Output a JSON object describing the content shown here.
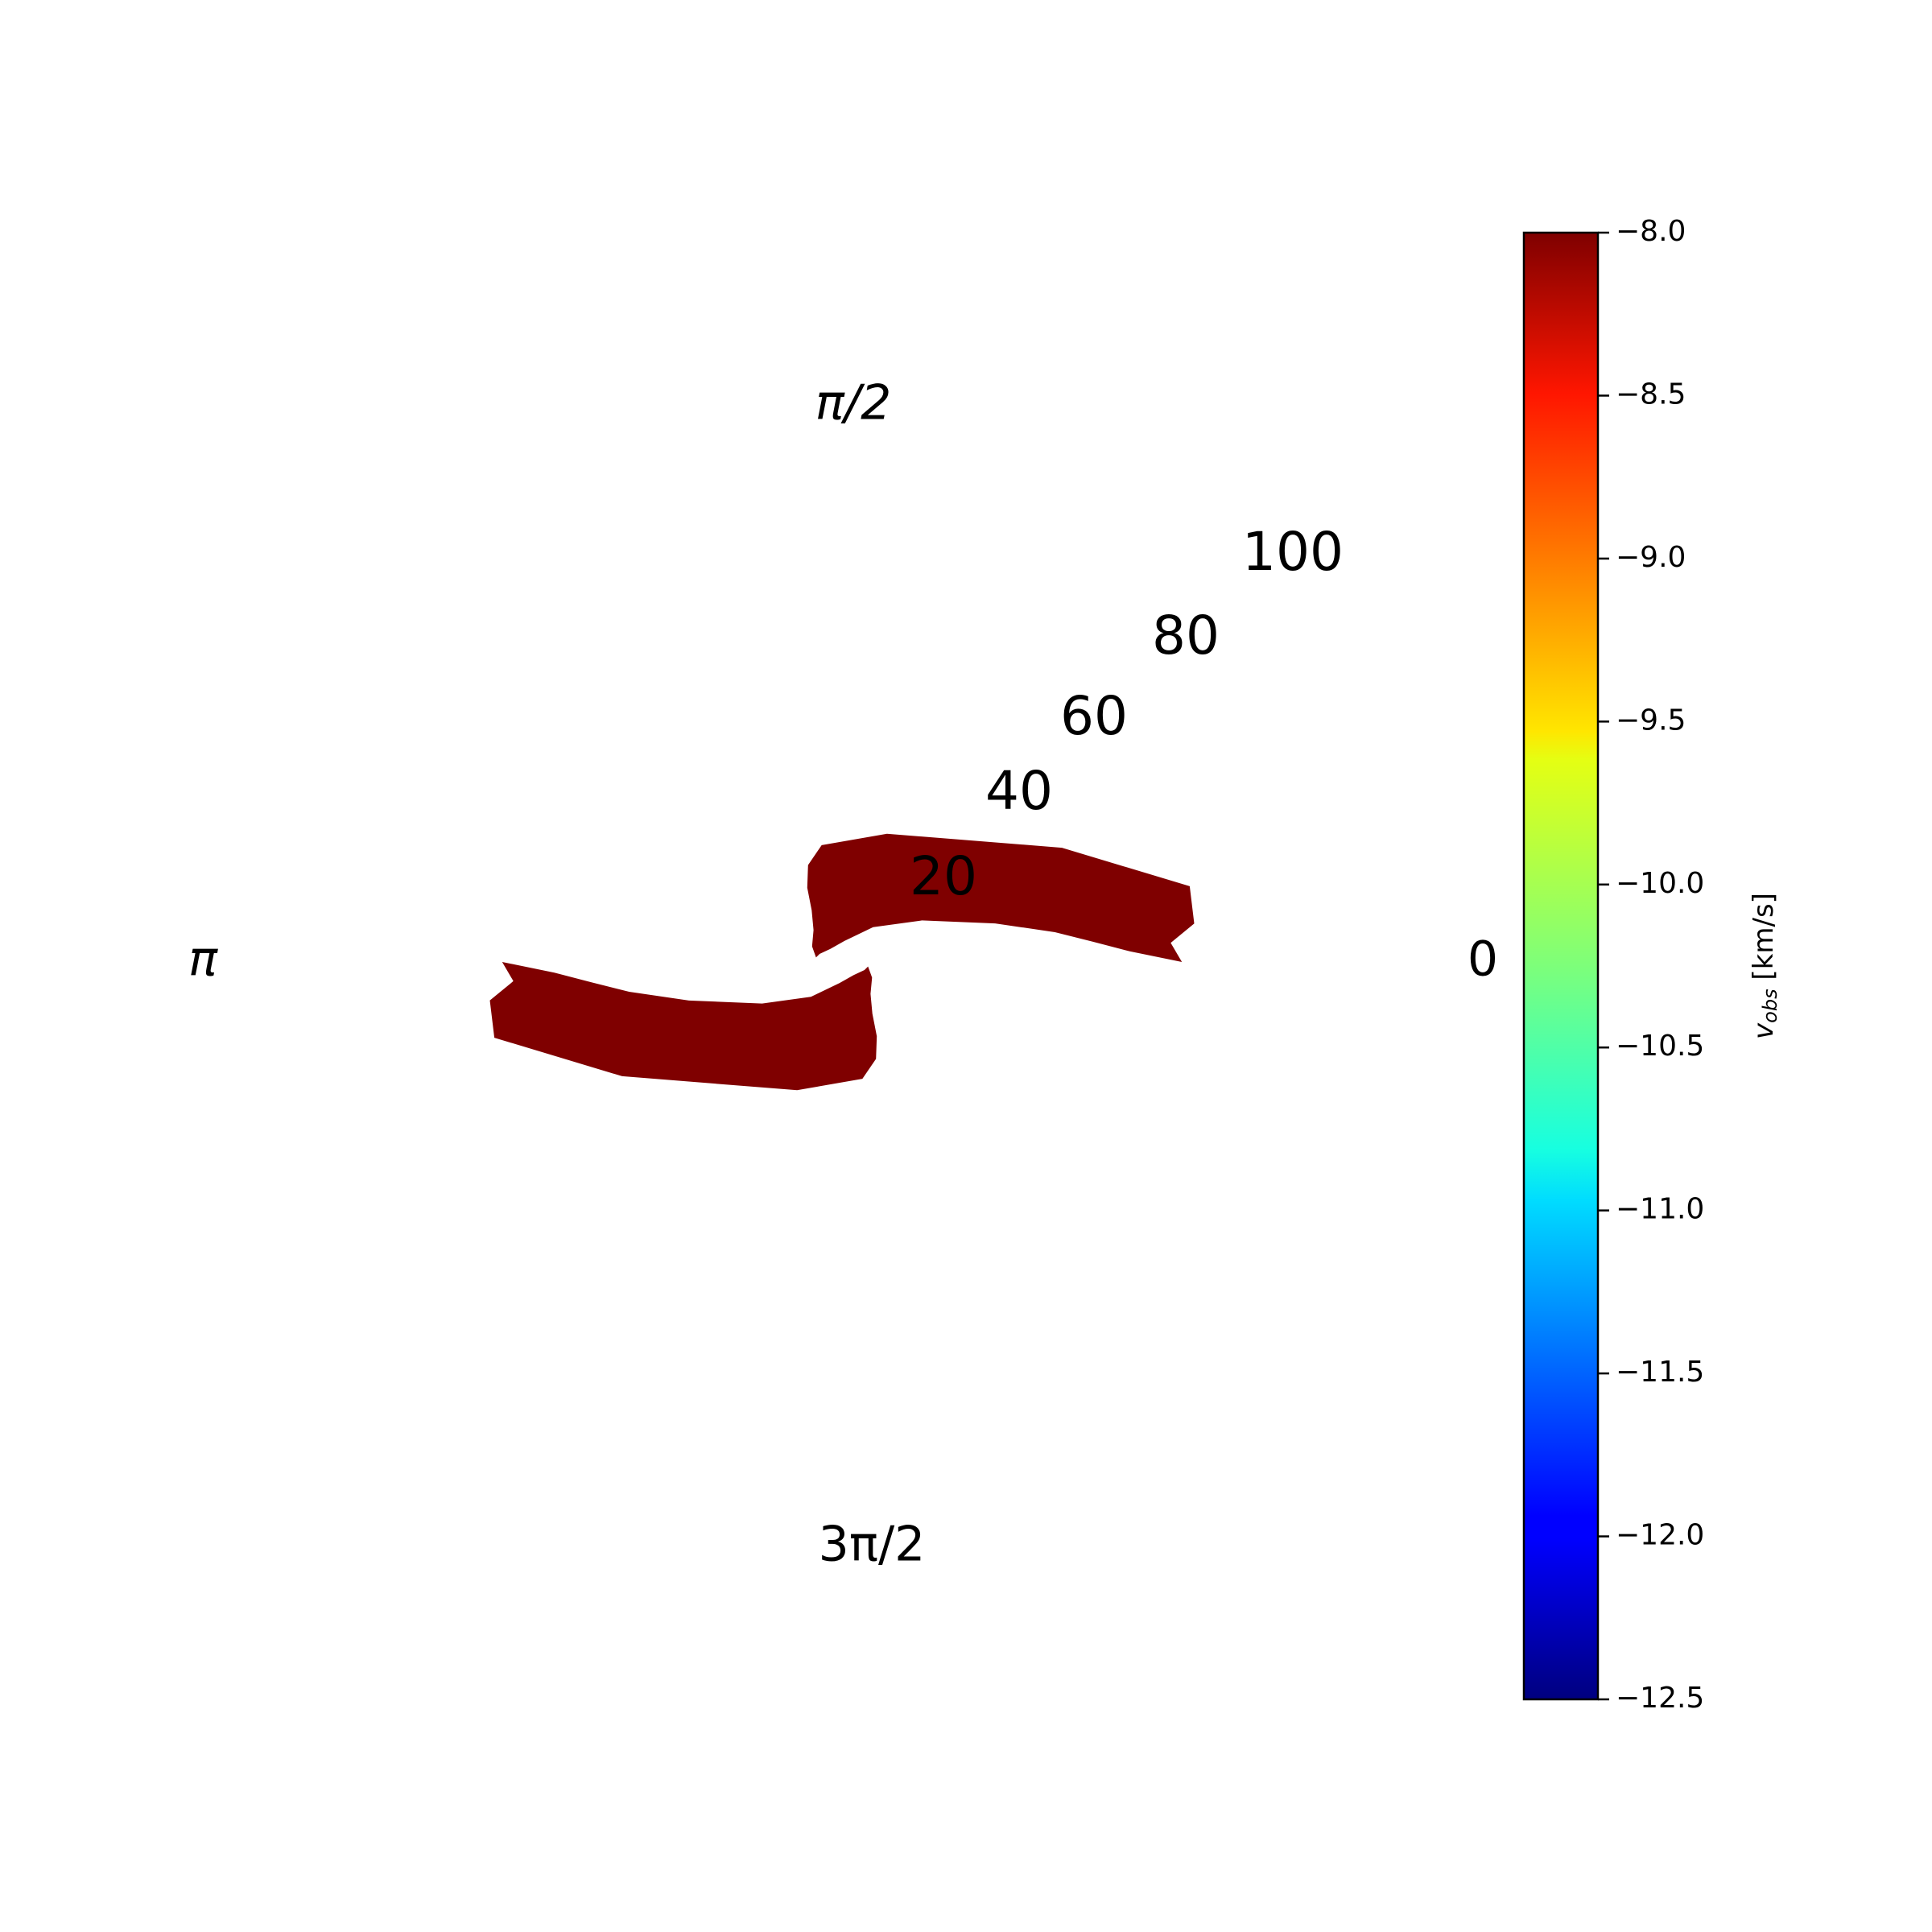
{
  "chart_data": {
    "type": "heatmap",
    "projection": "polar",
    "title": "",
    "angular_tick_labels": [
      "0",
      "π/2",
      "π",
      "3π/2"
    ],
    "radial_tick_labels": [
      "20",
      "40",
      "60",
      "80",
      "100"
    ],
    "radial_ticks": [
      20,
      40,
      60,
      80,
      100
    ],
    "rlim": [
      0,
      120
    ],
    "grid": false,
    "fill_color": "#7f0000",
    "fill_value": -8.0,
    "regions": [
      {
        "name": "left-arm",
        "boundary_r_theta_deg": [
          [
            6,
            330
          ],
          [
            12,
            300
          ],
          [
            22,
            285
          ],
          [
            35,
            280
          ],
          [
            50,
            278
          ],
          [
            65,
            276
          ],
          [
            78,
            273
          ],
          [
            86,
            264
          ],
          [
            88,
            240
          ],
          [
            86,
            216
          ],
          [
            75,
            200
          ],
          [
            67,
            191
          ],
          [
            68,
            180
          ],
          [
            58,
            187
          ],
          [
            52,
            195
          ],
          [
            47,
            205
          ],
          [
            40,
            220
          ],
          [
            32,
            240
          ],
          [
            24,
            255
          ],
          [
            14,
            268
          ],
          [
            9,
            285
          ],
          [
            7,
            310
          ]
        ]
      },
      {
        "name": "right-arm",
        "boundary_r_theta_deg": [
          [
            6,
            150
          ],
          [
            12,
            120
          ],
          [
            22,
            105
          ],
          [
            35,
            100
          ],
          [
            50,
            98
          ],
          [
            65,
            96
          ],
          [
            78,
            93
          ],
          [
            86,
            84
          ],
          [
            88,
            60
          ],
          [
            86,
            36
          ],
          [
            75,
            20
          ],
          [
            67,
            11
          ],
          [
            68,
            0
          ],
          [
            58,
            7
          ],
          [
            52,
            15
          ],
          [
            47,
            25
          ],
          [
            40,
            40
          ],
          [
            32,
            60
          ],
          [
            24,
            75
          ],
          [
            14,
            88
          ],
          [
            9,
            105
          ],
          [
            7,
            130
          ]
        ]
      }
    ],
    "colorbar": {
      "label": "v_obs [km/s]",
      "label_main": "v",
      "label_sub": "obs",
      "label_units": " [km/s]",
      "colormap": "jet",
      "vmin": -12.5,
      "vmax": -8.0,
      "ticks": [
        -8.0,
        -8.5,
        -9.0,
        -9.5,
        -10.0,
        -10.5,
        -11.0,
        -11.5,
        -12.0,
        -12.5
      ],
      "tick_labels": [
        "−8.0",
        "−8.5",
        "−9.0",
        "−9.5",
        "−10.0",
        "−10.5",
        "−11.0",
        "−11.5",
        "−12.0",
        "−12.5"
      ]
    }
  }
}
